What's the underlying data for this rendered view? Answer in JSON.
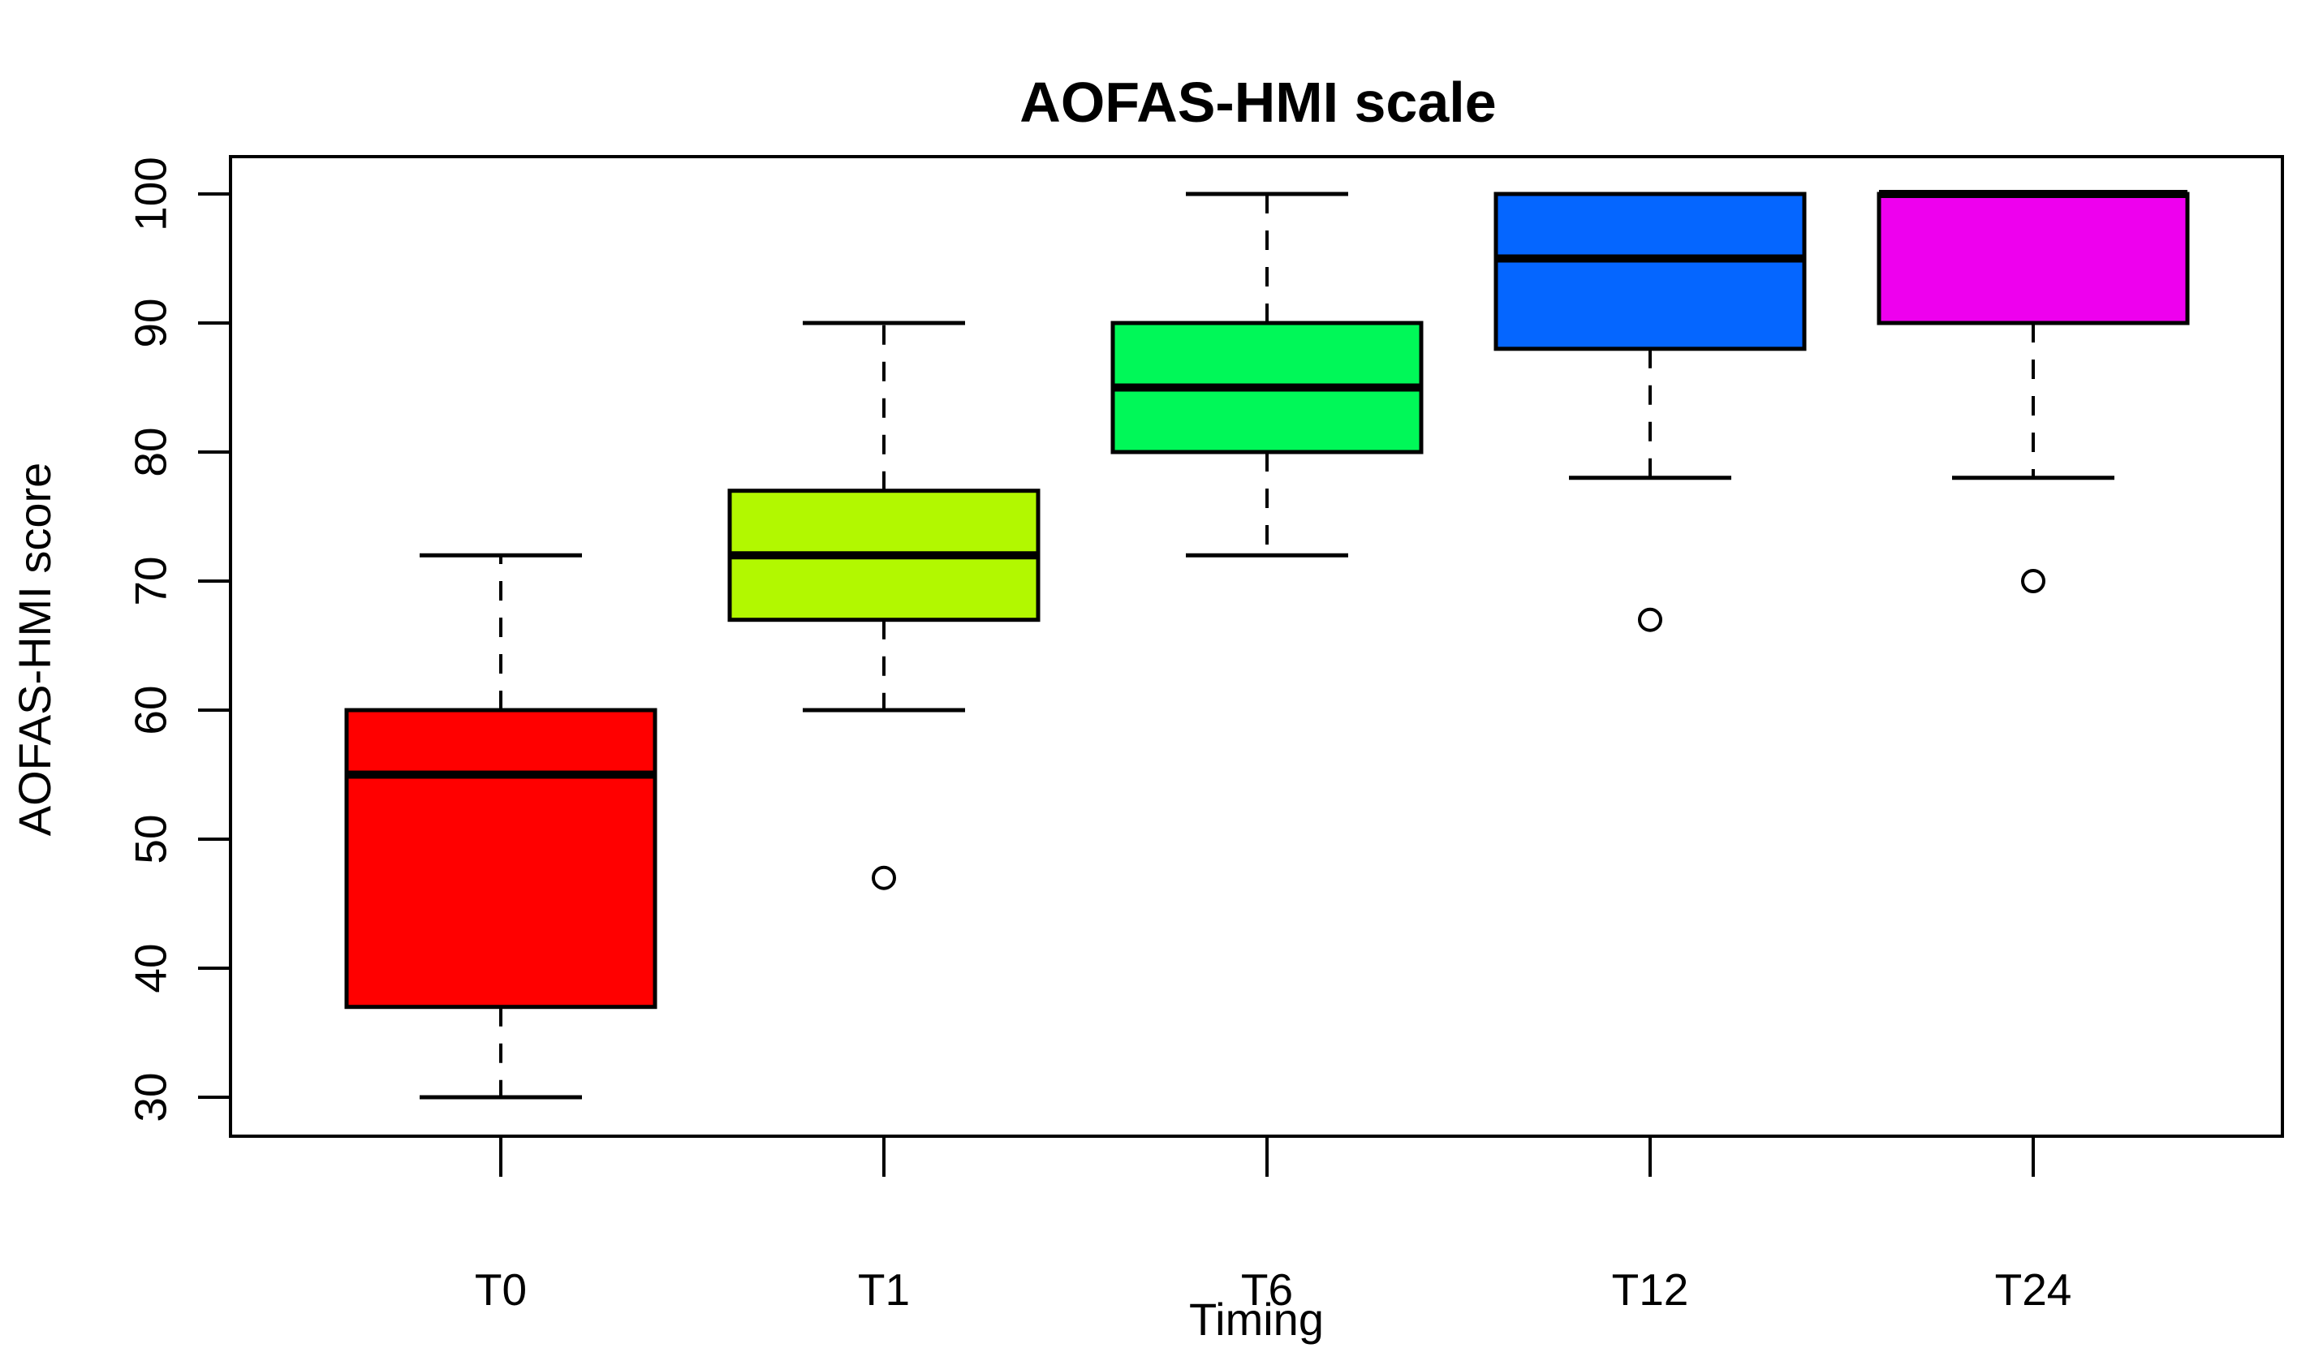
{
  "chart_data": {
    "type": "boxplot",
    "title": "AOFAS-HMI scale",
    "xlabel": "Timing",
    "ylabel": "AOFAS-HMI score",
    "categories": [
      "T0",
      "T1",
      "T6",
      "T12",
      "T24"
    ],
    "ylim": [
      30,
      100
    ],
    "y_ticks": [
      30,
      40,
      50,
      60,
      70,
      80,
      90,
      100
    ],
    "grid": false,
    "legend": "none",
    "background_color": "#FFFFFF",
    "frame_color": "#000000",
    "series": [
      {
        "name": "T0",
        "color": "#FF0000",
        "whisker_low": 30,
        "q1": 37,
        "median": 55,
        "q3": 60,
        "whisker_high": 72,
        "outliers": []
      },
      {
        "name": "T1",
        "color": "#B2F800",
        "whisker_low": 60,
        "q1": 67,
        "median": 72,
        "q3": 77,
        "whisker_high": 90,
        "outliers": [
          47
        ]
      },
      {
        "name": "T6",
        "color": "#00F858",
        "whisker_low": 72,
        "q1": 80,
        "median": 85,
        "q3": 90,
        "whisker_high": 100,
        "outliers": []
      },
      {
        "name": "T12",
        "color": "#0566FF",
        "whisker_low": 78,
        "q1": 88,
        "median": 95,
        "q3": 100,
        "whisker_high": 100,
        "outliers": [
          67
        ]
      },
      {
        "name": "T24",
        "color": "#EE00EE",
        "whisker_low": 78,
        "q1": 90,
        "median": 100,
        "q3": 100,
        "whisker_high": 100,
        "outliers": [
          70
        ]
      }
    ]
  }
}
